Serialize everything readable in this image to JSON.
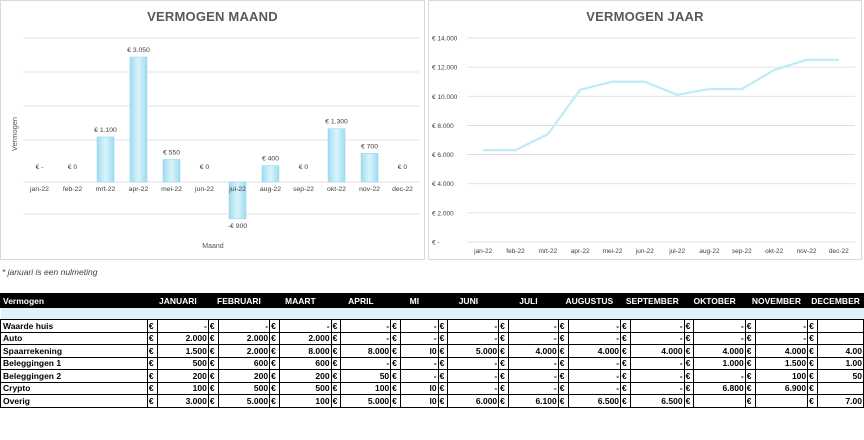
{
  "charts": {
    "left": {
      "title": "VERMOGEN MAAND",
      "ylabel": "Vermogen",
      "xlabel": "Maand"
    },
    "right": {
      "title": "VERMOGEN JAAR"
    }
  },
  "chart_data": [
    {
      "type": "bar",
      "title": "VERMOGEN MAAND",
      "xlabel": "Maand",
      "ylabel": "Vermogen",
      "categories": [
        "jan-22",
        "feb-22",
        "mrt-22",
        "apr-22",
        "mei-22",
        "jun-22",
        "jul-22",
        "aug-22",
        "sep-22",
        "okt-22",
        "nov-22",
        "dec-22"
      ],
      "values": [
        0,
        0,
        1100,
        3050,
        550,
        0,
        -900,
        400,
        0,
        1300,
        700,
        0
      ],
      "data_labels": [
        "€ -",
        "€ 0",
        "€ 1.100",
        "€ 3.050",
        "€ 550",
        "€ 0",
        "-€ 900",
        "€ 400",
        "€ 0",
        "€ 1.300",
        "€ 700",
        "€ 0"
      ],
      "ylim": [
        -1500,
        3500
      ],
      "grid": true,
      "color": "#bfeaf7"
    },
    {
      "type": "line",
      "title": "VERMOGEN JAAR",
      "categories": [
        "jan-22",
        "feb-22",
        "mrt-22",
        "apr-22",
        "mei-22",
        "jun-22",
        "jul-22",
        "aug-22",
        "sep-22",
        "okt-22",
        "nov-22",
        "dec-22"
      ],
      "values": [
        6300,
        6300,
        7400,
        10450,
        11000,
        11000,
        10100,
        10500,
        10500,
        11800,
        12500,
        12500
      ],
      "yticks": [
        "€ 14.000",
        "€ 12.000",
        "€ 10.000",
        "€ 8.000",
        "€ 6.000",
        "€ 4.000",
        "€ 2.000",
        "€ -"
      ],
      "ylim": [
        0,
        14000
      ],
      "grid": true,
      "color": "#bfeaf7"
    }
  ],
  "note": "* januari is een nulmeting",
  "table": {
    "header": [
      "Vermogen",
      "JANUARI",
      "FEBRUARI",
      "MAART",
      "APRIL",
      "MI",
      "JUNI",
      "JULI",
      "AUGUSTUS",
      "SEPTEMBER",
      "OKTOBER",
      "NOVEMBER",
      "DECEMBER"
    ],
    "rows": [
      {
        "label": "Waarde huis",
        "cells": [
          "-",
          "-",
          "-",
          "-",
          "-",
          "-",
          "-",
          "-",
          "-",
          "-",
          "-",
          ""
        ]
      },
      {
        "label": "Auto",
        "cells": [
          "2.000",
          "2.000",
          "2.000",
          "-",
          "-",
          "-",
          "-",
          "-",
          "-",
          "-",
          "-",
          ""
        ]
      },
      {
        "label": "Spaarrekening",
        "cells": [
          "1.500",
          "2.000",
          "8.000",
          "8.000",
          "I0",
          "5.000",
          "4.000",
          "4.000",
          "4.000",
          "4.000",
          "4.000",
          "4.00"
        ]
      },
      {
        "label": "Beleggingen 1",
        "cells": [
          "500",
          "600",
          "600",
          "-",
          "-",
          "-",
          "-",
          "-",
          "-",
          "1.000",
          "1.500",
          "1.00"
        ]
      },
      {
        "label": "Beleggingen 2",
        "cells": [
          "200",
          "200",
          "200",
          "50",
          "-",
          "-",
          "-",
          "-",
          "-",
          "-",
          "100",
          "50"
        ]
      },
      {
        "label": "Crypto",
        "cells": [
          "100",
          "500",
          "500",
          "100",
          "I0",
          "-",
          "-",
          "-",
          "-",
          "6.800",
          "6.900",
          ""
        ]
      },
      {
        "label": "Overig",
        "cells": [
          "3.000",
          "5.000",
          "100",
          "5.000",
          "I0",
          "6.000",
          "6.100",
          "6.500",
          "6.500",
          "",
          "",
          "7.00"
        ]
      }
    ]
  }
}
